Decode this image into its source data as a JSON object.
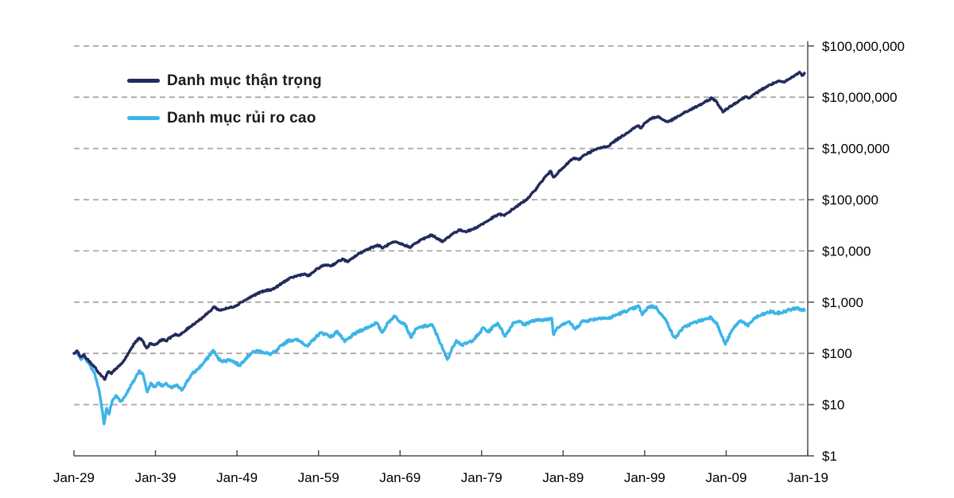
{
  "chart_data": {
    "type": "line",
    "title": "",
    "x_axis": {
      "tick_labels": [
        "Jan-29",
        "Jan-39",
        "Jan-49",
        "Jan-59",
        "Jan-69",
        "Jan-79",
        "Jan-89",
        "Jan-99",
        "Jan-09",
        "Jan-19"
      ],
      "tick_years": [
        1929,
        1939,
        1949,
        1959,
        1969,
        1979,
        1989,
        1999,
        2009,
        2019
      ],
      "range_years": [
        1929,
        2019
      ]
    },
    "y_axis": {
      "scale": "log",
      "side": "right",
      "tick_labels": [
        "$1",
        "$10",
        "$100",
        "$1,000",
        "$10,000",
        "$100,000",
        "$1,000,000",
        "$10,000,000",
        "$100,000,000"
      ],
      "tick_values": [
        1,
        10,
        100,
        1000,
        10000,
        100000,
        1000000,
        10000000,
        100000000
      ],
      "min": 1,
      "max": 100000000
    },
    "grid": "dashed-horizontal",
    "legend": {
      "position": "top-left",
      "entries": [
        {
          "label": "Danh mục thận trọng",
          "color": "#232b5c"
        },
        {
          "label": "Danh mục rủi ro cao",
          "color": "#3cb4e7"
        }
      ]
    },
    "series": [
      {
        "name": "Danh mục thận trọng",
        "color": "#232b5c",
        "points": [
          [
            1929.0,
            100
          ],
          [
            1929.4,
            112
          ],
          [
            1929.8,
            86
          ],
          [
            1930.2,
            95
          ],
          [
            1930.8,
            72
          ],
          [
            1931.4,
            58
          ],
          [
            1932.0,
            42
          ],
          [
            1932.8,
            31
          ],
          [
            1933.2,
            44
          ],
          [
            1933.6,
            40
          ],
          [
            1934.1,
            50
          ],
          [
            1934.6,
            57
          ],
          [
            1935.2,
            74
          ],
          [
            1935.8,
            108
          ],
          [
            1936.4,
            155
          ],
          [
            1937.0,
            200
          ],
          [
            1937.4,
            178
          ],
          [
            1937.9,
            127
          ],
          [
            1938.4,
            157
          ],
          [
            1938.9,
            147
          ],
          [
            1939.4,
            165
          ],
          [
            1939.8,
            188
          ],
          [
            1940.3,
            176
          ],
          [
            1940.9,
            208
          ],
          [
            1941.4,
            238
          ],
          [
            1941.9,
            222
          ],
          [
            1942.5,
            262
          ],
          [
            1943.2,
            328
          ],
          [
            1944.0,
            405
          ],
          [
            1944.8,
            505
          ],
          [
            1945.6,
            645
          ],
          [
            1946.2,
            815
          ],
          [
            1946.8,
            695
          ],
          [
            1947.5,
            735
          ],
          [
            1948.2,
            785
          ],
          [
            1948.9,
            855
          ],
          [
            1949.5,
            1000
          ],
          [
            1950.2,
            1140
          ],
          [
            1951.0,
            1340
          ],
          [
            1951.8,
            1540
          ],
          [
            1952.6,
            1690
          ],
          [
            1953.4,
            1790
          ],
          [
            1954.2,
            2150
          ],
          [
            1955.0,
            2650
          ],
          [
            1955.8,
            3050
          ],
          [
            1956.6,
            3350
          ],
          [
            1957.2,
            3550
          ],
          [
            1957.8,
            3250
          ],
          [
            1958.5,
            4050
          ],
          [
            1959.2,
            4850
          ],
          [
            1959.9,
            5350
          ],
          [
            1960.6,
            5150
          ],
          [
            1961.3,
            6100
          ],
          [
            1962.0,
            6900
          ],
          [
            1962.6,
            6100
          ],
          [
            1963.3,
            7500
          ],
          [
            1964.0,
            8900
          ],
          [
            1964.8,
            10400
          ],
          [
            1965.6,
            11900
          ],
          [
            1966.3,
            12900
          ],
          [
            1966.9,
            11400
          ],
          [
            1967.6,
            13400
          ],
          [
            1968.3,
            14900
          ],
          [
            1969.0,
            13900
          ],
          [
            1969.7,
            12700
          ],
          [
            1970.2,
            11800
          ],
          [
            1970.9,
            14000
          ],
          [
            1971.6,
            16500
          ],
          [
            1972.3,
            18500
          ],
          [
            1972.9,
            20500
          ],
          [
            1973.6,
            17500
          ],
          [
            1974.2,
            15000
          ],
          [
            1974.9,
            18500
          ],
          [
            1975.6,
            22500
          ],
          [
            1976.3,
            25500
          ],
          [
            1977.0,
            24000
          ],
          [
            1977.7,
            25500
          ],
          [
            1978.4,
            29000
          ],
          [
            1979.1,
            33500
          ],
          [
            1979.8,
            39000
          ],
          [
            1980.5,
            46000
          ],
          [
            1981.2,
            52000
          ],
          [
            1981.8,
            49000
          ],
          [
            1982.5,
            60000
          ],
          [
            1983.2,
            72000
          ],
          [
            1984.0,
            88000
          ],
          [
            1984.8,
            110000
          ],
          [
            1985.5,
            150000
          ],
          [
            1986.2,
            210000
          ],
          [
            1986.9,
            290000
          ],
          [
            1987.5,
            360000
          ],
          [
            1987.8,
            275000
          ],
          [
            1988.4,
            340000
          ],
          [
            1989.1,
            430000
          ],
          [
            1989.8,
            560000
          ],
          [
            1990.3,
            650000
          ],
          [
            1990.9,
            600000
          ],
          [
            1991.6,
            750000
          ],
          [
            1992.3,
            850000
          ],
          [
            1993.0,
            950000
          ],
          [
            1993.8,
            1050000
          ],
          [
            1994.5,
            1100000
          ],
          [
            1995.2,
            1350000
          ],
          [
            1996.0,
            1650000
          ],
          [
            1996.8,
            2000000
          ],
          [
            1997.5,
            2400000
          ],
          [
            1998.2,
            2800000
          ],
          [
            1998.5,
            2500000
          ],
          [
            1999.2,
            3300000
          ],
          [
            1999.9,
            3900000
          ],
          [
            2000.6,
            4200000
          ],
          [
            2001.3,
            3600000
          ],
          [
            2001.9,
            3300000
          ],
          [
            2002.5,
            3700000
          ],
          [
            2003.2,
            4300000
          ],
          [
            2003.9,
            5000000
          ],
          [
            2004.7,
            5800000
          ],
          [
            2005.5,
            6700000
          ],
          [
            2006.2,
            7700000
          ],
          [
            2006.9,
            8800000
          ],
          [
            2007.2,
            9800000
          ],
          [
            2007.8,
            8200000
          ],
          [
            2008.3,
            6200000
          ],
          [
            2008.6,
            5100000
          ],
          [
            2009.0,
            5800000
          ],
          [
            2009.6,
            6800000
          ],
          [
            2010.2,
            7800000
          ],
          [
            2010.8,
            9000000
          ],
          [
            2011.4,
            10300000
          ],
          [
            2011.9,
            9800000
          ],
          [
            2012.5,
            11500000
          ],
          [
            2013.3,
            14000000
          ],
          [
            2014.1,
            16500000
          ],
          [
            2014.9,
            19000000
          ],
          [
            2015.6,
            20500000
          ],
          [
            2016.1,
            19500000
          ],
          [
            2016.8,
            23000000
          ],
          [
            2017.5,
            27000000
          ],
          [
            2018.0,
            31000000
          ],
          [
            2018.3,
            26500000
          ],
          [
            2018.6,
            29500000
          ]
        ]
      },
      {
        "name": "Danh mục rủi ro cao",
        "color": "#3cb4e7",
        "points": [
          [
            1929.0,
            100
          ],
          [
            1929.3,
            104
          ],
          [
            1929.8,
            78
          ],
          [
            1930.3,
            88
          ],
          [
            1930.9,
            60
          ],
          [
            1931.5,
            42
          ],
          [
            1932.0,
            22
          ],
          [
            1932.4,
            9
          ],
          [
            1932.7,
            4.2
          ],
          [
            1933.0,
            8.5
          ],
          [
            1933.3,
            6.5
          ],
          [
            1933.7,
            12
          ],
          [
            1934.2,
            15
          ],
          [
            1934.7,
            11.5
          ],
          [
            1935.2,
            14
          ],
          [
            1935.8,
            21
          ],
          [
            1936.4,
            30
          ],
          [
            1937.0,
            46
          ],
          [
            1937.5,
            38
          ],
          [
            1938.0,
            17.5
          ],
          [
            1938.4,
            26
          ],
          [
            1938.9,
            22
          ],
          [
            1939.4,
            27
          ],
          [
            1939.8,
            23
          ],
          [
            1940.4,
            25
          ],
          [
            1941.0,
            21
          ],
          [
            1941.6,
            24
          ],
          [
            1942.2,
            19
          ],
          [
            1942.8,
            27
          ],
          [
            1943.4,
            38
          ],
          [
            1944.1,
            48
          ],
          [
            1944.8,
            62
          ],
          [
            1945.5,
            85
          ],
          [
            1946.1,
            115
          ],
          [
            1946.7,
            78
          ],
          [
            1947.4,
            70
          ],
          [
            1948.1,
            76
          ],
          [
            1948.8,
            66
          ],
          [
            1949.3,
            58
          ],
          [
            1950.0,
            78
          ],
          [
            1950.8,
            102
          ],
          [
            1951.5,
            112
          ],
          [
            1952.2,
            106
          ],
          [
            1953.0,
            96
          ],
          [
            1953.8,
            108
          ],
          [
            1954.5,
            145
          ],
          [
            1955.3,
            178
          ],
          [
            1956.1,
            185
          ],
          [
            1956.8,
            172
          ],
          [
            1957.7,
            138
          ],
          [
            1958.5,
            195
          ],
          [
            1959.2,
            250
          ],
          [
            1959.9,
            238
          ],
          [
            1960.6,
            210
          ],
          [
            1961.3,
            272
          ],
          [
            1962.2,
            168
          ],
          [
            1963.0,
            215
          ],
          [
            1963.8,
            262
          ],
          [
            1964.6,
            300
          ],
          [
            1965.4,
            345
          ],
          [
            1966.1,
            395
          ],
          [
            1966.8,
            255
          ],
          [
            1967.5,
            390
          ],
          [
            1968.3,
            540
          ],
          [
            1969.0,
            420
          ],
          [
            1969.6,
            380
          ],
          [
            1970.3,
            205
          ],
          [
            1971.0,
            300
          ],
          [
            1971.7,
            330
          ],
          [
            1972.4,
            345
          ],
          [
            1972.9,
            365
          ],
          [
            1973.6,
            215
          ],
          [
            1974.2,
            125
          ],
          [
            1974.8,
            76
          ],
          [
            1975.5,
            135
          ],
          [
            1975.9,
            180
          ],
          [
            1976.6,
            145
          ],
          [
            1977.3,
            160
          ],
          [
            1978.0,
            185
          ],
          [
            1978.7,
            240
          ],
          [
            1979.2,
            320
          ],
          [
            1979.8,
            260
          ],
          [
            1980.5,
            340
          ],
          [
            1981.0,
            390
          ],
          [
            1981.9,
            215
          ],
          [
            1982.9,
            400
          ],
          [
            1983.6,
            430
          ],
          [
            1984.2,
            360
          ],
          [
            1985.0,
            420
          ],
          [
            1985.8,
            440
          ],
          [
            1986.5,
            460
          ],
          [
            1987.1,
            450
          ],
          [
            1987.6,
            490
          ],
          [
            1987.8,
            235
          ],
          [
            1988.3,
            320
          ],
          [
            1989.0,
            380
          ],
          [
            1989.7,
            420
          ],
          [
            1990.5,
            295
          ],
          [
            1991.3,
            420
          ],
          [
            1992.1,
            440
          ],
          [
            1993.0,
            470
          ],
          [
            1993.8,
            500
          ],
          [
            1994.5,
            475
          ],
          [
            1995.3,
            545
          ],
          [
            1996.1,
            615
          ],
          [
            1996.9,
            685
          ],
          [
            1997.7,
            760
          ],
          [
            1998.3,
            830
          ],
          [
            1998.7,
            565
          ],
          [
            1999.4,
            800
          ],
          [
            2000.0,
            830
          ],
          [
            2000.5,
            760
          ],
          [
            2001.1,
            560
          ],
          [
            2001.8,
            400
          ],
          [
            2002.4,
            230
          ],
          [
            2002.8,
            200
          ],
          [
            2003.4,
            280
          ],
          [
            2004.1,
            340
          ],
          [
            2004.9,
            390
          ],
          [
            2005.7,
            430
          ],
          [
            2006.4,
            465
          ],
          [
            2007.1,
            510
          ],
          [
            2007.8,
            400
          ],
          [
            2008.4,
            230
          ],
          [
            2008.9,
            150
          ],
          [
            2009.6,
            260
          ],
          [
            2010.2,
            360
          ],
          [
            2010.8,
            440
          ],
          [
            2011.2,
            400
          ],
          [
            2011.7,
            340
          ],
          [
            2012.4,
            480
          ],
          [
            2013.1,
            540
          ],
          [
            2013.8,
            600
          ],
          [
            2014.6,
            660
          ],
          [
            2015.1,
            600
          ],
          [
            2015.9,
            630
          ],
          [
            2016.6,
            700
          ],
          [
            2017.2,
            730
          ],
          [
            2017.7,
            790
          ],
          [
            2018.0,
            700
          ],
          [
            2018.3,
            720
          ],
          [
            2018.6,
            690
          ]
        ]
      }
    ],
    "style": {
      "line_width": 3.4,
      "jitter_log_amp": [
        0.016,
        0.026
      ],
      "jitter_seed": 7,
      "grid_color": "#a9a9a9",
      "axis_color": "#4d4d4d",
      "tick_label_color": "#000000"
    }
  }
}
